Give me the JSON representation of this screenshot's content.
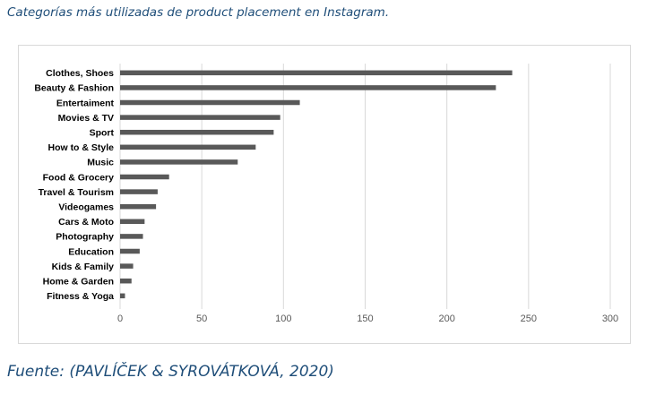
{
  "caption": "Categorías más utilizadas de product placement en Instagram.",
  "source": "Fuente: (PAVLÍČEK & SYROVÁTKOVÁ, 2020)",
  "colors": {
    "bar": "#595959",
    "gridline": "#d9d9d9",
    "text": "#000000",
    "tick_text": "#595959",
    "caption_text": "#1f4e79"
  },
  "chart_data": {
    "type": "bar",
    "orientation": "horizontal",
    "categories": [
      "Clothes, Shoes",
      "Beauty & Fashion",
      "Entertaiment",
      "Movies & TV",
      "Sport",
      "How to & Style",
      "Music",
      "Food & Grocery",
      "Travel & Tourism",
      "Videogames",
      "Cars & Moto",
      "Photography",
      "Education",
      "Kids & Family",
      "Home & Garden",
      "Fitness & Yoga"
    ],
    "values": [
      240,
      230,
      110,
      98,
      94,
      83,
      72,
      30,
      23,
      22,
      15,
      14,
      12,
      8,
      7,
      3
    ],
    "xlim": [
      0,
      300
    ],
    "xticks": [
      0,
      50,
      100,
      150,
      200,
      250,
      300
    ],
    "grid": true,
    "title": "",
    "xlabel": "",
    "ylabel": ""
  }
}
